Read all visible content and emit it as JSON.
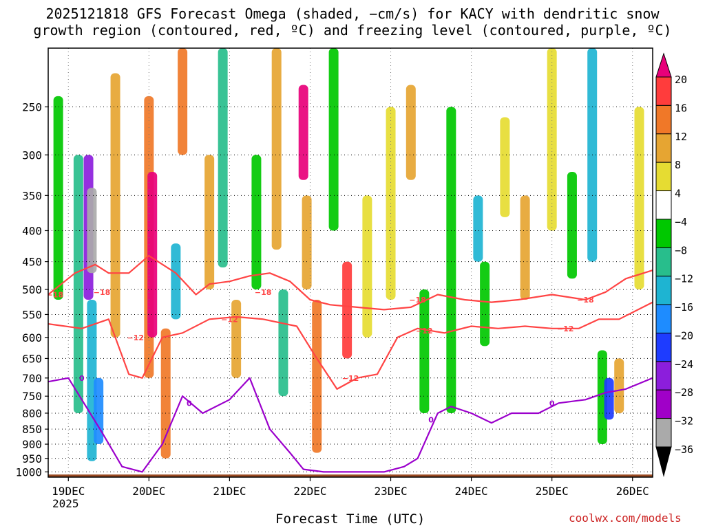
{
  "title_line1": "2025121818 GFS Forecast Omega (shaded, −cm/s) for KACY with dendritic snow",
  "title_line2": "growth region (contoured, red, ºC) and freezing level (contoured, purple, ºC)",
  "xlabel": "Forecast Time (UTC)",
  "credit": "coolwx.com/models",
  "chart_data": {
    "type": "heatmap",
    "title": "2025121818 GFS Forecast Omega (shaded, −cm/s) for KACY with dendritic snow growth region (contoured, red, ºC) and freezing level (contoured, purple, ºC)",
    "xlabel": "Forecast Time (UTC)",
    "ylabel": "",
    "x_ticks": [
      {
        "label": "19DEC",
        "sub": "2025",
        "hours": 6
      },
      {
        "label": "20DEC",
        "hours": 30
      },
      {
        "label": "21DEC",
        "hours": 54
      },
      {
        "label": "22DEC",
        "hours": 78
      },
      {
        "label": "23DEC",
        "hours": 102
      },
      {
        "label": "24DEC",
        "hours": 126
      },
      {
        "label": "25DEC",
        "hours": 150
      },
      {
        "label": "26DEC",
        "hours": 174
      }
    ],
    "x_range_hours": [
      0,
      180
    ],
    "y_ticks": [
      250,
      300,
      350,
      400,
      450,
      500,
      550,
      600,
      650,
      700,
      750,
      800,
      850,
      900,
      950,
      1000
    ],
    "y_range_hpa": [
      200,
      1020
    ],
    "y_scale": "log-pressure",
    "colorbar": {
      "labels": [
        "20",
        "16",
        "12",
        "8",
        "4",
        "−4",
        "−8",
        "−12",
        "−16",
        "−20",
        "−24",
        "−28",
        "−32",
        "−36"
      ],
      "colors": [
        "#e8007a",
        "#ff3c3c",
        "#f07828",
        "#e6a532",
        "#e6dc32",
        "#ffffff",
        "#00c800",
        "#28be8c",
        "#1eb4d2",
        "#1e8cff",
        "#1e3cff",
        "#8c1edc",
        "#a000c8",
        "#aaaaaa",
        "#000000"
      ]
    },
    "omega_cells": [
      {
        "h": 3,
        "p1": 240,
        "p2": 520,
        "v": -8
      },
      {
        "h": 9,
        "p1": 300,
        "p2": 800,
        "v": -12
      },
      {
        "h": 12,
        "p1": 300,
        "p2": 520,
        "v": -28
      },
      {
        "h": 13,
        "p1": 340,
        "p2": 470,
        "v": -36
      },
      {
        "h": 13,
        "p1": 520,
        "p2": 960,
        "v": -16
      },
      {
        "h": 15,
        "p1": 700,
        "p2": 900,
        "v": -20
      },
      {
        "h": 20,
        "p1": 220,
        "p2": 600,
        "v": 8
      },
      {
        "h": 30,
        "p1": 240,
        "p2": 700,
        "v": 12
      },
      {
        "h": 31,
        "p1": 320,
        "p2": 600,
        "v": 20
      },
      {
        "h": 35,
        "p1": 580,
        "p2": 950,
        "v": 12
      },
      {
        "h": 38,
        "p1": 420,
        "p2": 560,
        "v": -16
      },
      {
        "h": 40,
        "p1": 200,
        "p2": 300,
        "v": 12
      },
      {
        "h": 48,
        "p1": 300,
        "p2": 500,
        "v": 8
      },
      {
        "h": 52,
        "p1": 200,
        "p2": 460,
        "v": -12
      },
      {
        "h": 56,
        "p1": 520,
        "p2": 700,
        "v": 8
      },
      {
        "h": 62,
        "p1": 300,
        "p2": 500,
        "v": -8
      },
      {
        "h": 68,
        "p1": 200,
        "p2": 430,
        "v": 8
      },
      {
        "h": 70,
        "p1": 500,
        "p2": 750,
        "v": -12
      },
      {
        "h": 76,
        "p1": 230,
        "p2": 330,
        "v": 20
      },
      {
        "h": 77,
        "p1": 350,
        "p2": 500,
        "v": 8
      },
      {
        "h": 80,
        "p1": 520,
        "p2": 930,
        "v": 12
      },
      {
        "h": 85,
        "p1": 200,
        "p2": 400,
        "v": -8
      },
      {
        "h": 89,
        "p1": 450,
        "p2": 650,
        "v": 16
      },
      {
        "h": 95,
        "p1": 350,
        "p2": 600,
        "v": 4
      },
      {
        "h": 102,
        "p1": 250,
        "p2": 520,
        "v": 4
      },
      {
        "h": 108,
        "p1": 230,
        "p2": 330,
        "v": 8
      },
      {
        "h": 112,
        "p1": 500,
        "p2": 800,
        "v": -8
      },
      {
        "h": 120,
        "p1": 250,
        "p2": 800,
        "v": -8
      },
      {
        "h": 128,
        "p1": 350,
        "p2": 450,
        "v": -16
      },
      {
        "h": 130,
        "p1": 450,
        "p2": 620,
        "v": -8
      },
      {
        "h": 136,
        "p1": 260,
        "p2": 380,
        "v": 4
      },
      {
        "h": 142,
        "p1": 350,
        "p2": 520,
        "v": 8
      },
      {
        "h": 150,
        "p1": 200,
        "p2": 400,
        "v": 4
      },
      {
        "h": 156,
        "p1": 320,
        "p2": 480,
        "v": -8
      },
      {
        "h": 162,
        "p1": 200,
        "p2": 450,
        "v": -16
      },
      {
        "h": 165,
        "p1": 630,
        "p2": 900,
        "v": -8
      },
      {
        "h": 167,
        "p1": 700,
        "p2": 820,
        "v": -24
      },
      {
        "h": 170,
        "p1": 650,
        "p2": 800,
        "v": 8
      },
      {
        "h": 176,
        "p1": 250,
        "p2": 500,
        "v": 4
      }
    ],
    "contours": [
      {
        "name": "minus18-isotherm",
        "color": "#ff4444",
        "label": "−18",
        "points": [
          [
            0,
            510
          ],
          [
            8,
            470
          ],
          [
            14,
            455
          ],
          [
            18,
            470
          ],
          [
            24,
            470
          ],
          [
            30,
            440
          ],
          [
            38,
            470
          ],
          [
            44,
            510
          ],
          [
            48,
            490
          ],
          [
            54,
            485
          ],
          [
            60,
            475
          ],
          [
            66,
            470
          ],
          [
            72,
            485
          ],
          [
            78,
            520
          ],
          [
            84,
            530
          ],
          [
            92,
            535
          ],
          [
            100,
            540
          ],
          [
            108,
            535
          ],
          [
            116,
            510
          ],
          [
            124,
            520
          ],
          [
            132,
            525
          ],
          [
            140,
            520
          ],
          [
            150,
            510
          ],
          [
            160,
            520
          ],
          [
            166,
            505
          ],
          [
            172,
            480
          ],
          [
            180,
            465
          ]
        ],
        "label_at": [
          [
            2,
            510
          ],
          [
            16,
            505
          ],
          [
            64,
            505
          ],
          [
            110,
            520
          ],
          [
            160,
            520
          ]
        ]
      },
      {
        "name": "minus12-isotherm",
        "color": "#ff4444",
        "label": "−12",
        "points": [
          [
            0,
            570
          ],
          [
            10,
            580
          ],
          [
            18,
            560
          ],
          [
            24,
            690
          ],
          [
            28,
            700
          ],
          [
            34,
            600
          ],
          [
            40,
            590
          ],
          [
            48,
            560
          ],
          [
            56,
            555
          ],
          [
            64,
            560
          ],
          [
            74,
            575
          ],
          [
            80,
            650
          ],
          [
            86,
            730
          ],
          [
            92,
            700
          ],
          [
            98,
            690
          ],
          [
            104,
            600
          ],
          [
            110,
            580
          ],
          [
            118,
            590
          ],
          [
            126,
            575
          ],
          [
            134,
            580
          ],
          [
            142,
            575
          ],
          [
            150,
            580
          ],
          [
            158,
            580
          ],
          [
            164,
            560
          ],
          [
            170,
            560
          ],
          [
            180,
            525
          ]
        ],
        "label_at": [
          [
            26,
            600
          ],
          [
            54,
            560
          ],
          [
            90,
            700
          ],
          [
            112,
            585
          ],
          [
            154,
            580
          ]
        ]
      },
      {
        "name": "freezing-level",
        "color": "#9b00cc",
        "label": "0",
        "points": [
          [
            0,
            710
          ],
          [
            6,
            700
          ],
          [
            10,
            760
          ],
          [
            16,
            860
          ],
          [
            22,
            980
          ],
          [
            28,
            1000
          ],
          [
            34,
            900
          ],
          [
            40,
            750
          ],
          [
            46,
            800
          ],
          [
            54,
            760
          ],
          [
            60,
            700
          ],
          [
            66,
            850
          ],
          [
            72,
            930
          ],
          [
            76,
            990
          ],
          [
            82,
            1000
          ],
          [
            92,
            1000
          ],
          [
            100,
            1000
          ],
          [
            106,
            980
          ],
          [
            110,
            950
          ],
          [
            116,
            800
          ],
          [
            120,
            780
          ],
          [
            126,
            800
          ],
          [
            132,
            830
          ],
          [
            138,
            800
          ],
          [
            146,
            800
          ],
          [
            152,
            770
          ],
          [
            160,
            760
          ],
          [
            166,
            740
          ],
          [
            172,
            730
          ],
          [
            180,
            700
          ]
        ],
        "label_at": [
          [
            10,
            700
          ],
          [
            42,
            770
          ],
          [
            114,
            820
          ],
          [
            150,
            770
          ]
        ]
      }
    ],
    "terrain_pressure_hpa": 1010
  }
}
